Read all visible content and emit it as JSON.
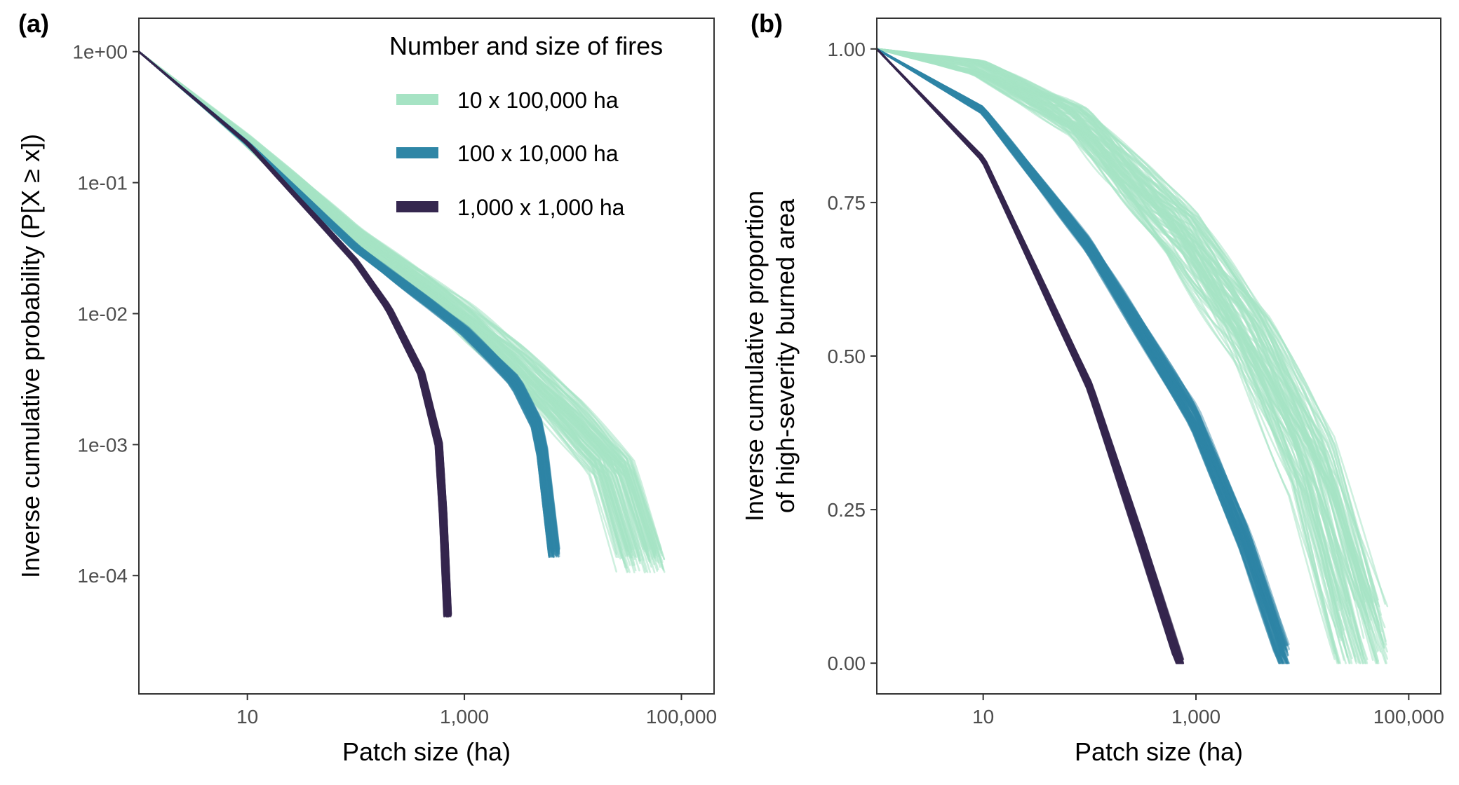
{
  "figure": {
    "panel_a_tag": "(a)",
    "panel_b_tag": "(b)",
    "colors": {
      "fires_10x100000": "#a6e3c4",
      "fires_100x10000": "#2f86a6",
      "fires_1000x1000": "#35274f",
      "frame": "#333333",
      "tick_text": "#4d4d4d"
    }
  },
  "chart_data": [
    {
      "panel": "(a)",
      "type": "line",
      "xlabel": "Patch size (ha)",
      "ylabel": "Inverse cumulative probability (P[X ≥ x])",
      "x_scale": "log10",
      "y_scale": "log10",
      "xlim": [
        1,
        200000
      ],
      "ylim": [
        1.25e-05,
        1.8
      ],
      "x_ticks": [
        {
          "value": 10,
          "label": "10"
        },
        {
          "value": 1000,
          "label": "1,000"
        },
        {
          "value": 100000,
          "label": "100,000"
        }
      ],
      "y_ticks": [
        {
          "value": 1,
          "label": "1e+00"
        },
        {
          "value": 0.1,
          "label": "1e-01"
        },
        {
          "value": 0.01,
          "label": "1e-02"
        },
        {
          "value": 0.001,
          "label": "1e-03"
        },
        {
          "value": 0.0001,
          "label": "1e-04"
        }
      ],
      "grid": false,
      "legend": {
        "title": "Number and size of fires",
        "position": "top-right",
        "entries": [
          "10 x 100,000 ha",
          "100 x 10,000 ha",
          "1,000 x 1,000 ha"
        ]
      },
      "series": [
        {
          "name": "10 x 100,000 ha",
          "replicates": 100,
          "representative": [
            [
              1,
              1
            ],
            [
              10,
              0.22
            ],
            [
              100,
              0.042
            ],
            [
              1000,
              0.0105
            ],
            [
              3000,
              0.0048
            ],
            [
              10000,
              0.0018
            ],
            [
              30000,
              0.00065
            ],
            [
              55000,
              0.00013
            ]
          ],
          "x_end_range": [
            25000,
            70000
          ]
        },
        {
          "name": "100 x 10,000 ha",
          "replicates": 100,
          "representative": [
            [
              1,
              1
            ],
            [
              10,
              0.2
            ],
            [
              100,
              0.032
            ],
            [
              1000,
              0.0075
            ],
            [
              3000,
              0.003
            ],
            [
              5000,
              0.0013
            ],
            [
              6800,
              0.00015
            ]
          ],
          "x_end_range": [
            6000,
            7500
          ]
        },
        {
          "name": "1,000 x 1,000 ha",
          "replicates": 100,
          "representative": [
            [
              1,
              1
            ],
            [
              10,
              0.2
            ],
            [
              100,
              0.025
            ],
            [
              200,
              0.011
            ],
            [
              400,
              0.0035
            ],
            [
              600,
              0.0009
            ],
            [
              700,
              5e-05
            ]
          ],
          "x_end_range": [
            650,
            760
          ]
        }
      ]
    },
    {
      "panel": "(b)",
      "type": "line",
      "xlabel": "Patch size (ha)",
      "ylabel": "Inverse cumulative proportion of high-severity burned area",
      "ylabel_lines": [
        "Inverse cumulative proportion",
        "of high-severity burned area"
      ],
      "x_scale": "log10",
      "y_scale": "linear",
      "xlim": [
        1,
        200000
      ],
      "ylim": [
        -0.05,
        1.05
      ],
      "x_ticks": [
        {
          "value": 10,
          "label": "10"
        },
        {
          "value": 1000,
          "label": "1,000"
        },
        {
          "value": 100000,
          "label": "100,000"
        }
      ],
      "y_ticks": [
        {
          "value": 0,
          "label": "0.00"
        },
        {
          "value": 0.25,
          "label": "0.25"
        },
        {
          "value": 0.5,
          "label": "0.50"
        },
        {
          "value": 0.75,
          "label": "0.75"
        },
        {
          "value": 1,
          "label": "1.00"
        }
      ],
      "grid": false,
      "series": [
        {
          "name": "10 x 100,000 ha",
          "replicates": 100,
          "representative": [
            [
              1,
              1
            ],
            [
              10,
              0.97
            ],
            [
              100,
              0.88
            ],
            [
              1000,
              0.7
            ],
            [
              5000,
              0.52
            ],
            [
              20000,
              0.32
            ],
            [
              60000,
              0.05
            ]
          ],
          "x_end_range": [
            20000,
            65000
          ]
        },
        {
          "name": "100 x 10,000 ha",
          "replicates": 100,
          "representative": [
            [
              1,
              1
            ],
            [
              10,
              0.9
            ],
            [
              100,
              0.68
            ],
            [
              1000,
              0.4
            ],
            [
              3000,
              0.2
            ],
            [
              7000,
              0.01
            ]
          ],
          "x_end_range": [
            6000,
            7500
          ]
        },
        {
          "name": "1,000 x 1,000 ha",
          "replicates": 100,
          "representative": [
            [
              1,
              1
            ],
            [
              10,
              0.82
            ],
            [
              100,
              0.45
            ],
            [
              300,
              0.2
            ],
            [
              700,
              0.0
            ]
          ],
          "x_end_range": [
            650,
            760
          ]
        }
      ]
    }
  ]
}
